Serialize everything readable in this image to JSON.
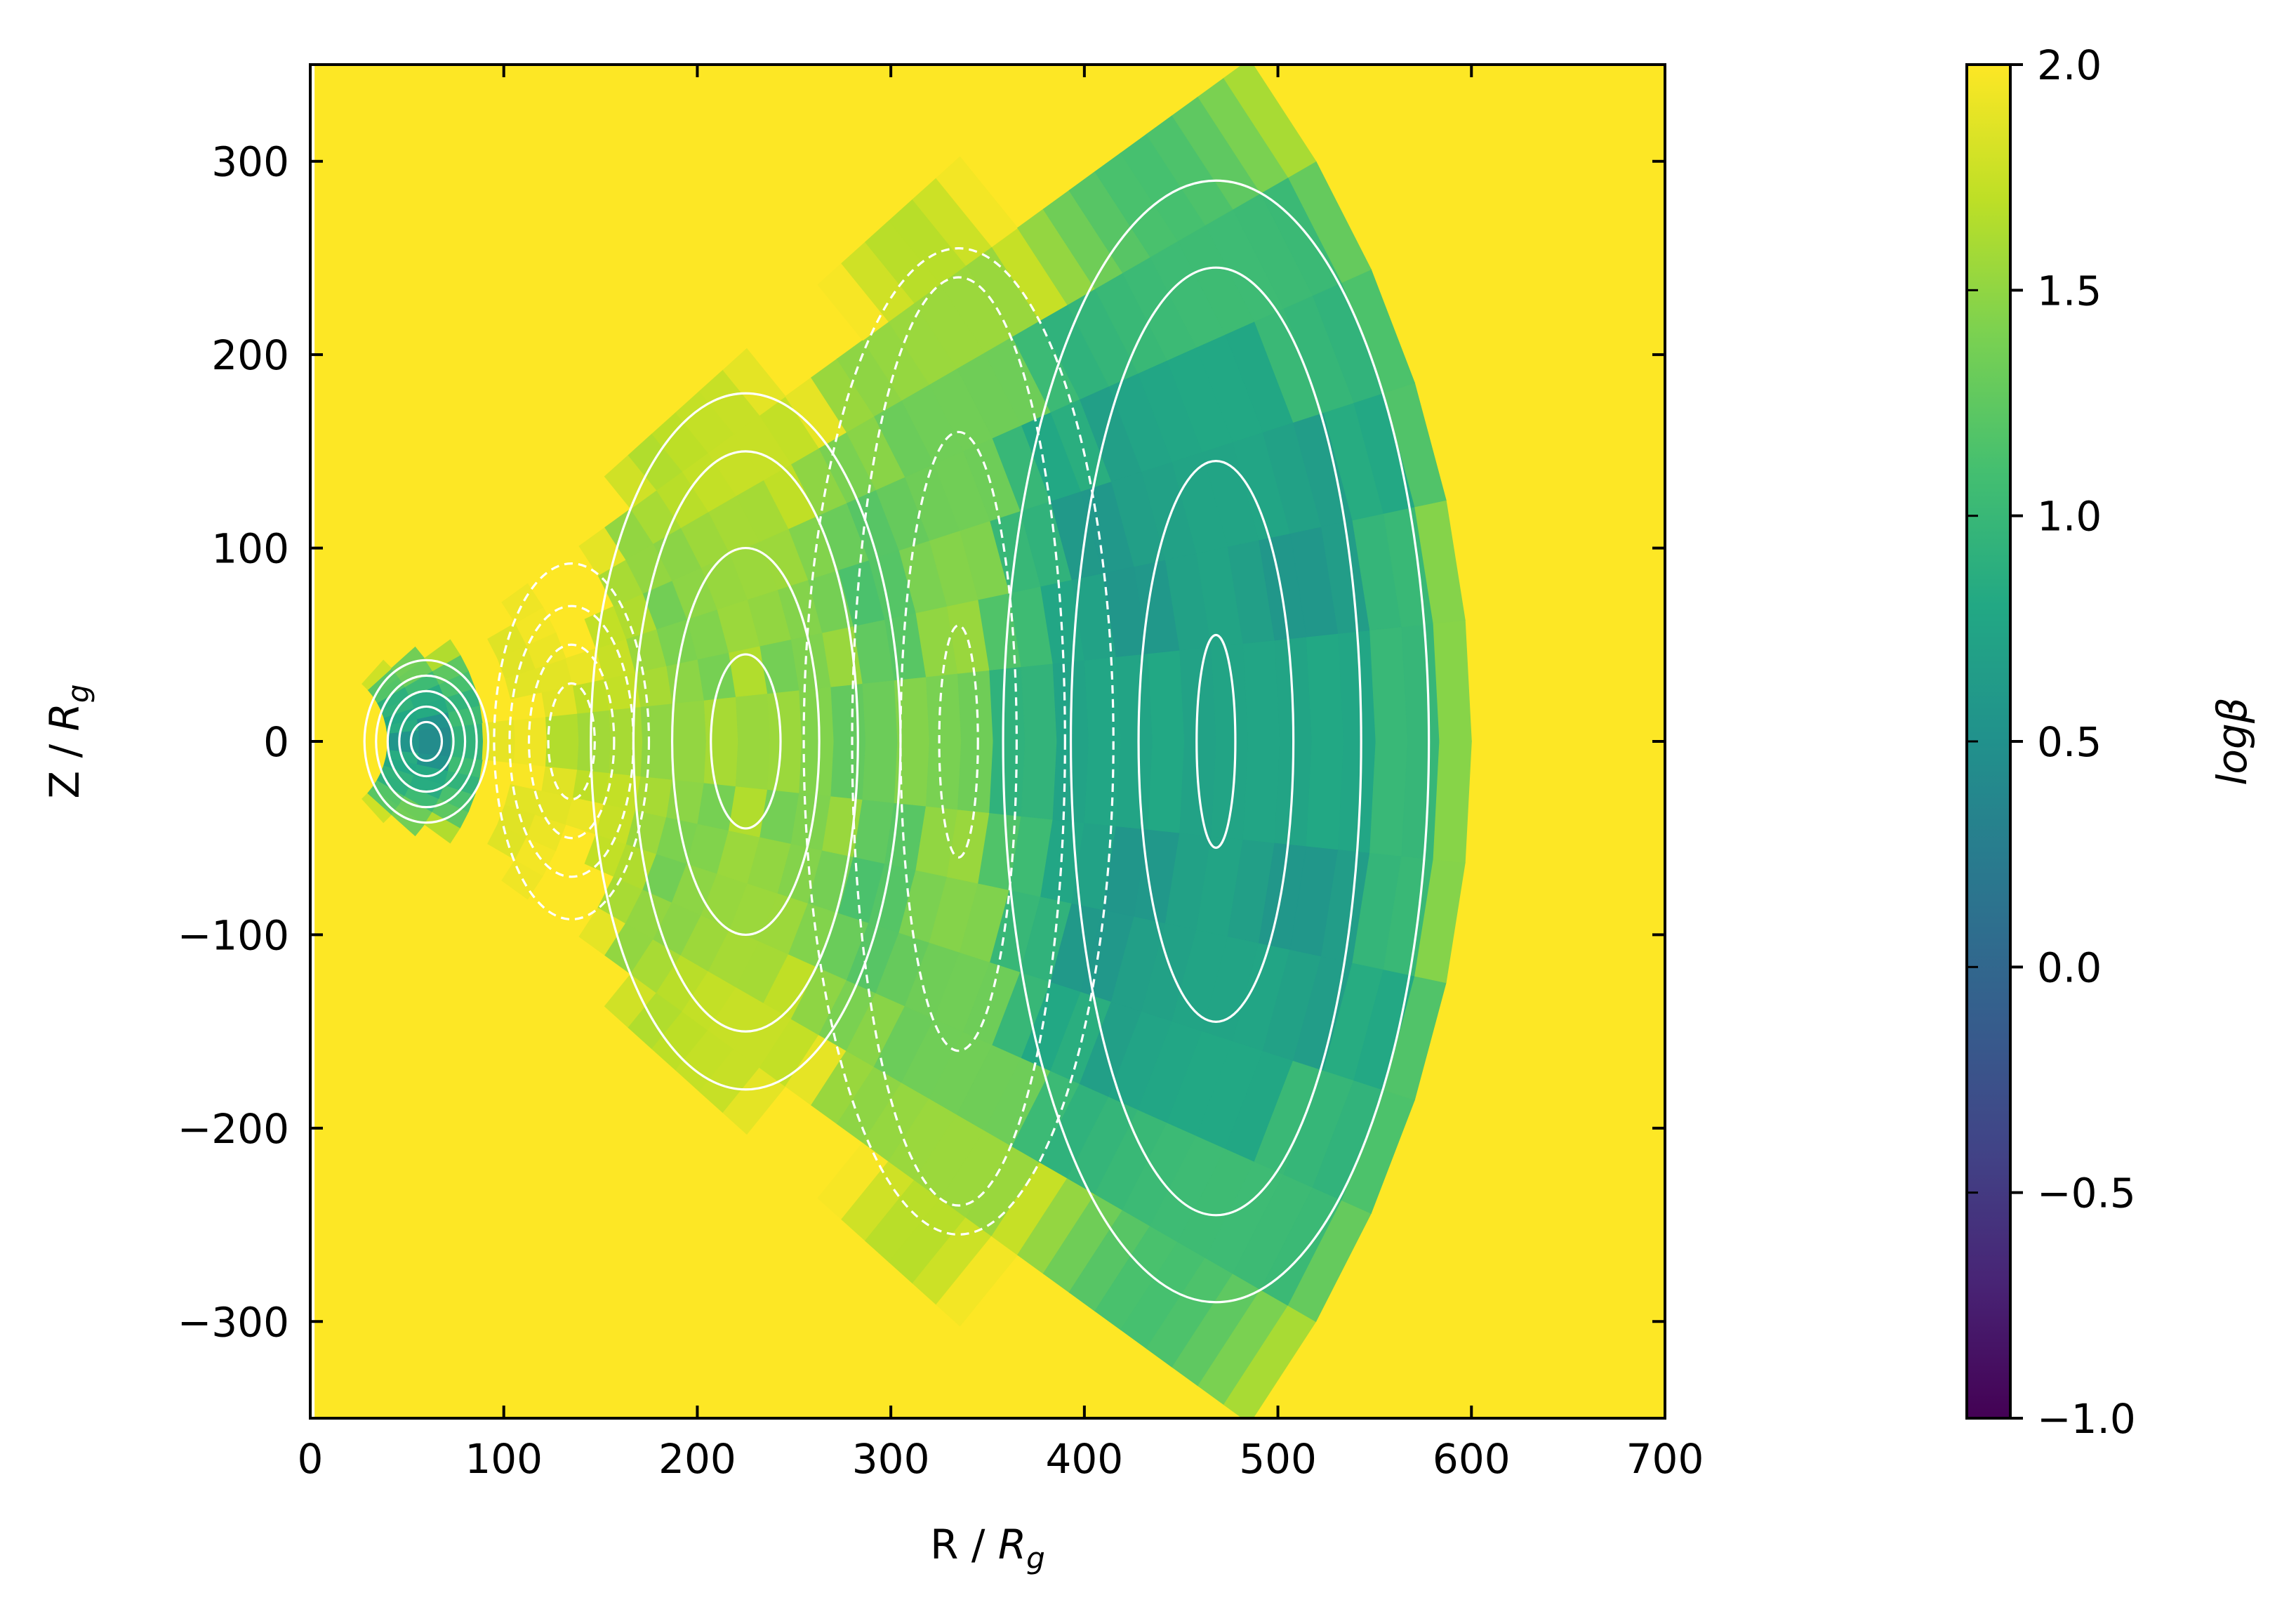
{
  "chart_data": {
    "type": "heatmap",
    "title": "",
    "xlabel": {
      "prefix": "R / ",
      "symbol": "R",
      "subscript": "g"
    },
    "ylabel": {
      "prefix": "Z / ",
      "symbol": "R",
      "subscript": "g"
    },
    "xlim": [
      0,
      700
    ],
    "ylim": [
      -350,
      350
    ],
    "xticks": [
      0,
      100,
      200,
      300,
      400,
      500,
      600,
      700
    ],
    "yticks": [
      -300,
      -200,
      -100,
      0,
      100,
      200,
      300
    ],
    "xtick_labels": [
      "0",
      "100",
      "200",
      "300",
      "400",
      "500",
      "600",
      "700"
    ],
    "ytick_labels": [
      "−300",
      "−200",
      "−100",
      "0",
      "100",
      "200",
      "300"
    ],
    "grid": false,
    "background_value": 2.0,
    "colormap": "viridis",
    "colorbar": {
      "label": "logβ",
      "range": [
        -1.0,
        2.0
      ],
      "ticks": [
        -1.0,
        -0.5,
        0.0,
        0.5,
        1.0,
        1.5,
        2.0
      ],
      "tick_labels": [
        "−1.0",
        "−0.5",
        "0.0",
        "0.5",
        "1.0",
        "1.5",
        "2.0"
      ]
    },
    "loops": [
      {
        "center": [
          60,
          0
        ],
        "sign": "positive",
        "rx": [
          8,
          14,
          20,
          26,
          32
        ],
        "ry": [
          10,
          18,
          26,
          34,
          42
        ],
        "logbeta": [
          0.2,
          0.4,
          0.6,
          0.8,
          1.1
        ]
      },
      {
        "center": [
          135,
          0
        ],
        "sign": "negative",
        "rx": [
          12,
          22,
          32,
          40
        ],
        "ry": [
          30,
          50,
          70,
          92
        ],
        "logbeta": [
          1.6,
          1.7,
          1.75,
          1.8
        ]
      },
      {
        "center": [
          225,
          0
        ],
        "sign": "positive",
        "rx": [
          18,
          38,
          58,
          80
        ],
        "ry": [
          45,
          100,
          150,
          180
        ],
        "logbeta": [
          1.4,
          1.3,
          1.35,
          1.5
        ]
      },
      {
        "center": [
          335,
          0
        ],
        "sign": "negative",
        "rx": [
          10,
          30,
          55,
          80
        ],
        "ry": [
          60,
          160,
          240,
          255
        ],
        "logbeta": [
          1.3,
          1.2,
          1.1,
          1.3
        ]
      },
      {
        "center": [
          468,
          0
        ],
        "sign": "positive",
        "rx": [
          10,
          40,
          75,
          110
        ],
        "ry": [
          55,
          145,
          245,
          290
        ],
        "logbeta": [
          0.6,
          0.5,
          0.55,
          0.8
        ]
      }
    ],
    "outer_field_boundary_r": 600,
    "contour_color": "#ffffff",
    "contour_styles": {
      "positive": "solid",
      "negative": "dashed"
    }
  }
}
